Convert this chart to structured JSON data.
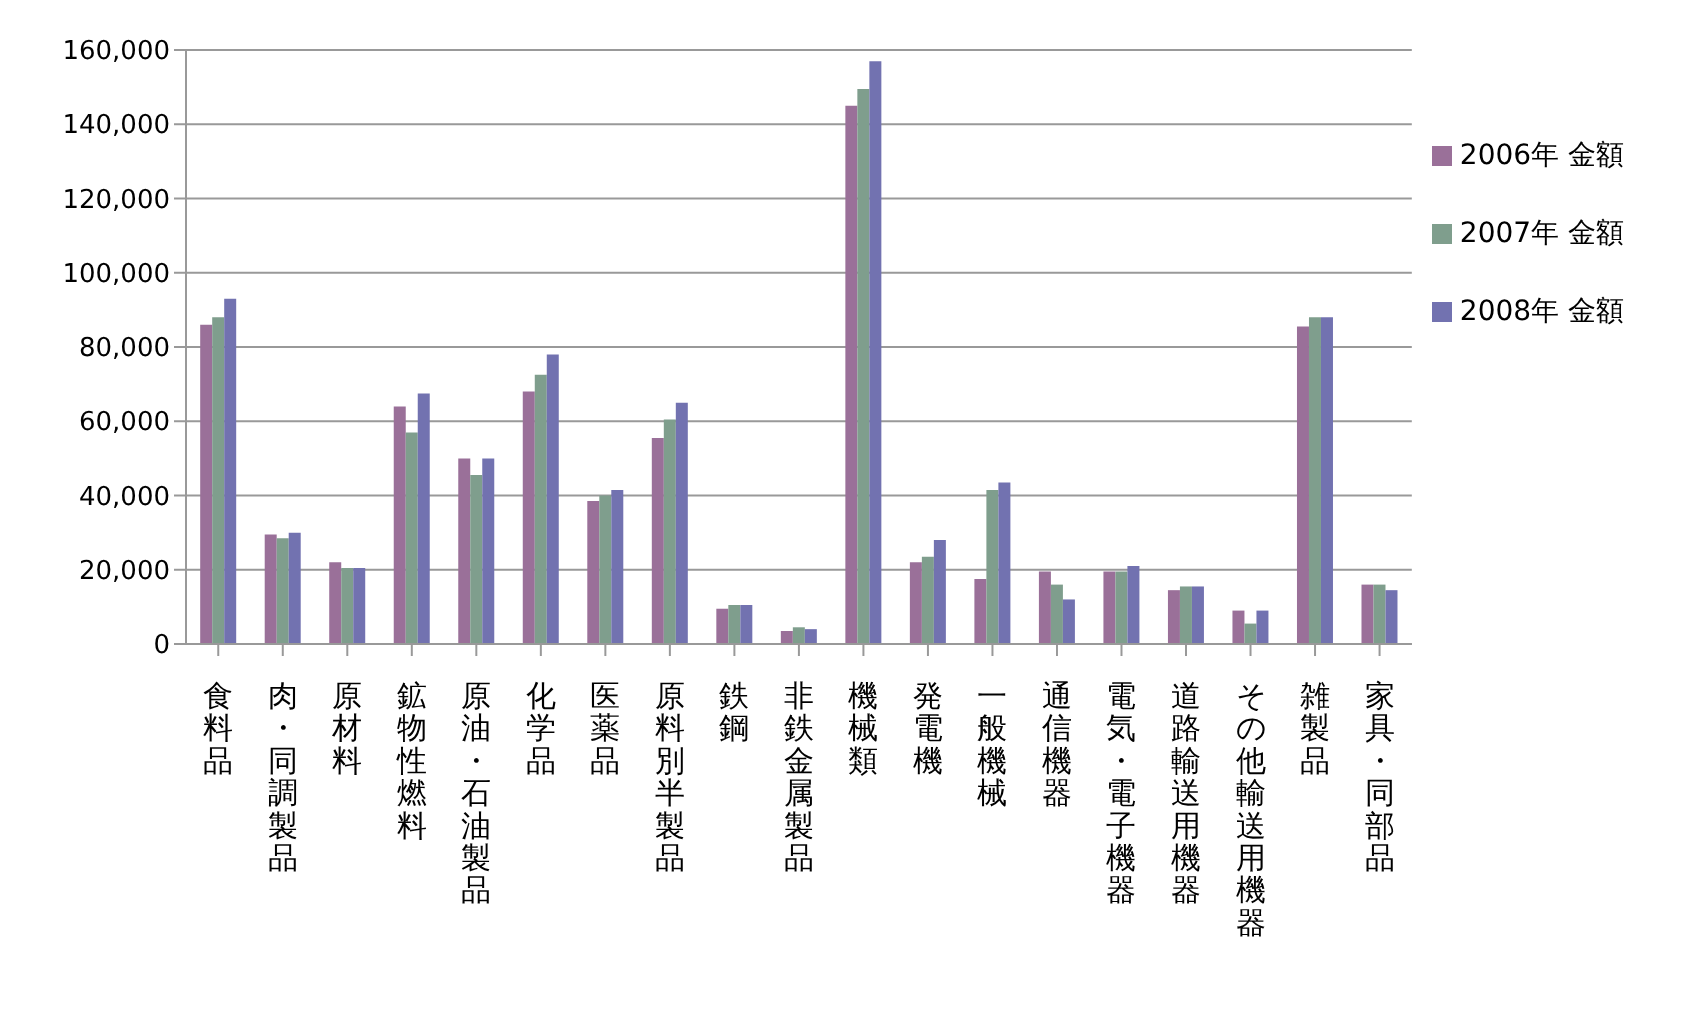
{
  "chart_data": {
    "type": "bar",
    "categories": [
      "食料品",
      "肉・同調製品",
      "原材料",
      "鉱物性燃料",
      "原油・石油製品",
      "化学品",
      "医薬品",
      "原料別半製品",
      "鉄鋼",
      "非鉄金属製品",
      "機械類",
      "発電機",
      "一般機械",
      "通信機器",
      "電気・電子機器",
      "道路輸送用機器",
      "その他輸送用機器",
      "雑製品",
      "家具・同部品"
    ],
    "series": [
      {
        "name": "2006年 金額",
        "color": "#9a7099",
        "values": [
          86000,
          29500,
          22000,
          64000,
          50000,
          68000,
          38500,
          55500,
          9500,
          3500,
          145000,
          22000,
          17500,
          19500,
          19500,
          14500,
          9000,
          85500,
          16000
        ]
      },
      {
        "name": "2007年 金額",
        "color": "#7f9e8d",
        "values": [
          88000,
          28500,
          20500,
          57000,
          45500,
          72500,
          40000,
          60500,
          10500,
          4500,
          149500,
          23500,
          41500,
          16000,
          19500,
          15500,
          5500,
          88000,
          16000
        ]
      },
      {
        "name": "2008年 金額",
        "color": "#7272b0",
        "values": [
          93000,
          30000,
          20500,
          67500,
          50000,
          78000,
          41500,
          65000,
          10500,
          4000,
          157000,
          28000,
          43500,
          12000,
          21000,
          15500,
          9000,
          88000,
          14500
        ]
      }
    ],
    "ylim": [
      0,
      160000
    ],
    "yticks": [
      0,
      {
        "value": 20000,
        "label": "20,000"
      },
      {
        "value": 40000,
        "label": "40,000"
      },
      {
        "value": 60000,
        "label": "60,000"
      },
      {
        "value": 80000,
        "label": "80,000"
      },
      {
        "value": 100000,
        "label": "100,000"
      },
      {
        "value": 120000,
        "label": "120,000"
      },
      {
        "value": 140000,
        "label": "140,000"
      },
      {
        "value": 160000,
        "label": "160,000"
      }
    ],
    "grid": "y",
    "legend": "right"
  }
}
